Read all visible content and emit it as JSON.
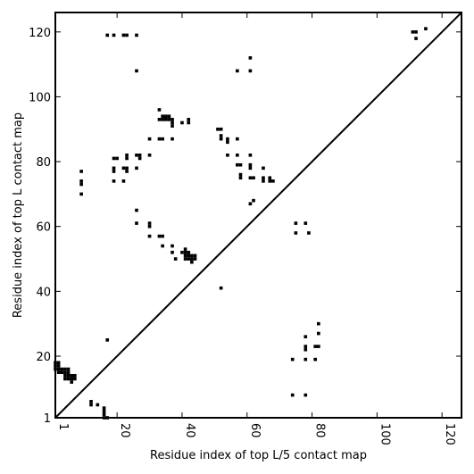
{
  "chart_data": {
    "type": "scatter",
    "xlabel": "Residue index of top L/5 contact map",
    "ylabel": "Residue index of top L contact map",
    "xlim": [
      1,
      126
    ],
    "ylim": [
      1,
      126
    ],
    "xticks": [
      1,
      20,
      40,
      60,
      80,
      100,
      120
    ],
    "yticks": [
      1,
      20,
      40,
      60,
      80,
      100,
      120
    ],
    "diagonal": true,
    "marker_color": "#000000",
    "upper_triangle_points": [
      [
        1,
        16
      ],
      [
        1,
        17
      ],
      [
        1,
        18
      ],
      [
        2,
        15
      ],
      [
        2,
        16
      ],
      [
        2,
        17
      ],
      [
        2,
        18
      ],
      [
        3,
        15
      ],
      [
        3,
        16
      ],
      [
        4,
        13
      ],
      [
        4,
        14
      ],
      [
        4,
        15
      ],
      [
        4,
        16
      ],
      [
        5,
        13
      ],
      [
        5,
        14
      ],
      [
        5,
        15
      ],
      [
        5,
        16
      ],
      [
        6,
        12
      ],
      [
        6,
        13
      ],
      [
        6,
        14
      ],
      [
        7,
        13
      ],
      [
        7,
        14
      ],
      [
        9,
        70
      ],
      [
        9,
        73
      ],
      [
        9,
        74
      ],
      [
        9,
        77
      ],
      [
        17,
        119
      ],
      [
        19,
        119
      ],
      [
        22,
        119
      ],
      [
        23,
        119
      ],
      [
        26,
        119
      ],
      [
        26,
        108
      ],
      [
        19,
        74
      ],
      [
        19,
        77
      ],
      [
        19,
        78
      ],
      [
        19,
        81
      ],
      [
        20,
        81
      ],
      [
        22,
        74
      ],
      [
        22,
        78
      ],
      [
        23,
        77
      ],
      [
        23,
        78
      ],
      [
        23,
        81
      ],
      [
        23,
        82
      ],
      [
        26,
        78
      ],
      [
        26,
        82
      ],
      [
        27,
        81
      ],
      [
        27,
        82
      ],
      [
        26,
        65
      ],
      [
        26,
        61
      ],
      [
        30,
        60
      ],
      [
        30,
        61
      ],
      [
        30,
        57
      ],
      [
        30,
        82
      ],
      [
        30,
        87
      ],
      [
        33,
        87
      ],
      [
        34,
        87
      ],
      [
        37,
        87
      ],
      [
        33,
        96
      ],
      [
        33,
        93
      ],
      [
        34,
        93
      ],
      [
        34,
        94
      ],
      [
        35,
        93
      ],
      [
        35,
        94
      ],
      [
        36,
        93
      ],
      [
        36,
        94
      ],
      [
        37,
        91
      ],
      [
        37,
        92
      ],
      [
        37,
        93
      ],
      [
        40,
        92
      ],
      [
        42,
        92
      ],
      [
        42,
        93
      ],
      [
        33,
        57
      ],
      [
        34,
        57
      ],
      [
        34,
        54
      ],
      [
        37,
        54
      ],
      [
        37,
        52
      ],
      [
        38,
        50
      ],
      [
        40,
        52
      ],
      [
        41,
        52
      ],
      [
        41,
        53
      ],
      [
        41,
        50
      ],
      [
        41,
        51
      ],
      [
        42,
        50
      ],
      [
        42,
        51
      ],
      [
        42,
        52
      ],
      [
        43,
        49
      ],
      [
        43,
        50
      ],
      [
        43,
        51
      ],
      [
        44,
        50
      ],
      [
        44,
        51
      ],
      [
        51,
        90
      ],
      [
        52,
        90
      ],
      [
        52,
        88
      ],
      [
        52,
        87
      ],
      [
        54,
        87
      ],
      [
        54,
        86
      ],
      [
        54,
        82
      ],
      [
        57,
        87
      ],
      [
        57,
        82
      ],
      [
        57,
        79
      ],
      [
        58,
        79
      ],
      [
        58,
        76
      ],
      [
        58,
        75
      ],
      [
        61,
        82
      ],
      [
        61,
        79
      ],
      [
        61,
        78
      ],
      [
        61,
        75
      ],
      [
        62,
        75
      ],
      [
        57,
        108
      ],
      [
        61,
        108
      ],
      [
        61,
        112
      ],
      [
        61,
        67
      ],
      [
        62,
        68
      ],
      [
        65,
        78
      ],
      [
        65,
        75
      ],
      [
        65,
        74
      ],
      [
        67,
        75
      ],
      [
        67,
        74
      ],
      [
        68,
        74
      ],
      [
        52,
        41
      ],
      [
        75,
        61
      ],
      [
        78,
        61
      ],
      [
        75,
        58
      ],
      [
        79,
        58
      ],
      [
        111,
        120
      ],
      [
        112,
        120
      ],
      [
        112,
        118
      ],
      [
        115,
        121
      ]
    ],
    "lower_triangle_points": [
      [
        12,
        6
      ],
      [
        12,
        5
      ],
      [
        14,
        5
      ],
      [
        16,
        4
      ],
      [
        16,
        3
      ],
      [
        16,
        2
      ],
      [
        16,
        1
      ],
      [
        17,
        1
      ],
      [
        17,
        25
      ],
      [
        74,
        19
      ],
      [
        74,
        8
      ],
      [
        78,
        8
      ],
      [
        78,
        26
      ],
      [
        78,
        23
      ],
      [
        78,
        22
      ],
      [
        78,
        19
      ],
      [
        81,
        19
      ],
      [
        81,
        23
      ],
      [
        82,
        23
      ],
      [
        82,
        27
      ],
      [
        82,
        30
      ]
    ]
  }
}
